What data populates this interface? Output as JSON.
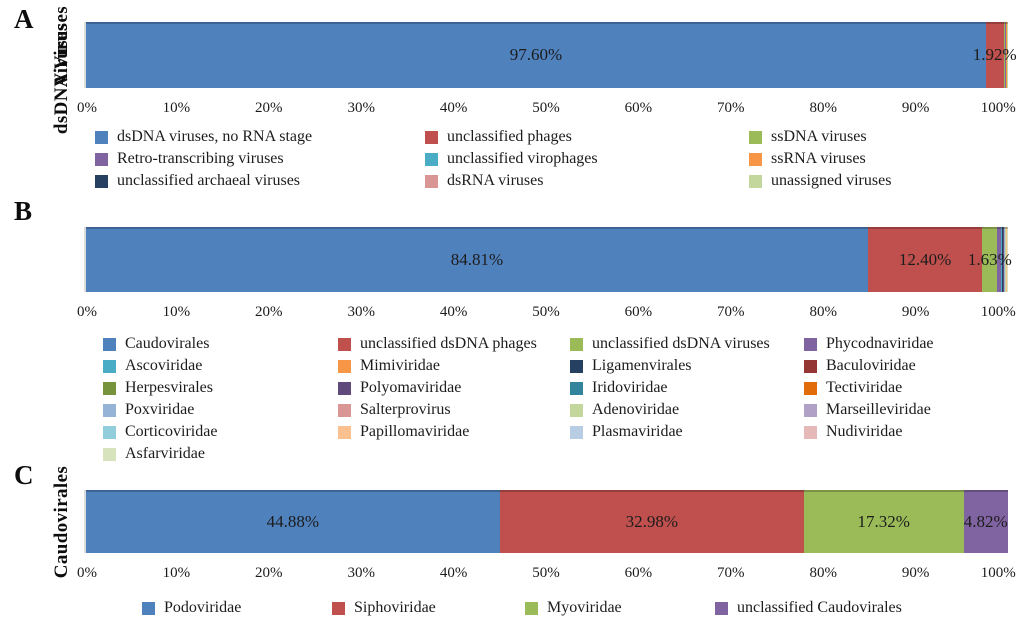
{
  "chart_data": [
    {
      "panel": "A",
      "type": "bar",
      "stacked": true,
      "orientation": "horizontal",
      "axis_label": "Viruses",
      "xlim": [
        0,
        100
      ],
      "x_tick_labels": [
        "0%",
        "10%",
        "20%",
        "30%",
        "40%",
        "50%",
        "60%",
        "70%",
        "80%",
        "90%",
        "100%"
      ],
      "grid": false,
      "legend_position": "bottom",
      "legend_columns": 3,
      "segments": [
        {
          "label": "dsDNA viruses, no RNA stage",
          "color": "#4F81BD",
          "value": 97.6,
          "value_label": "97.60%"
        },
        {
          "label": "unclassified phages",
          "color": "#C0504D",
          "value": 1.92,
          "value_label": "1.92%"
        },
        {
          "label": "ssDNA viruses",
          "color": "#9BBB59",
          "value": 0.18,
          "estimated": true
        },
        {
          "label": "Retro-transcribing viruses",
          "color": "#8064A2",
          "value": 0.06,
          "estimated": true
        },
        {
          "label": "unclassified virophages",
          "color": "#4BACC6",
          "value": 0.05,
          "estimated": true
        },
        {
          "label": "ssRNA viruses",
          "color": "#F79646",
          "value": 0.05,
          "estimated": true
        },
        {
          "label": "unclassified archaeal viruses",
          "color": "#254061",
          "value": 0.04,
          "estimated": true
        },
        {
          "label": "dsRNA viruses",
          "color": "#D99694",
          "value": 0.05,
          "estimated": true
        },
        {
          "label": "unassigned viruses",
          "color": "#C3D69B",
          "value": 0.05,
          "estimated": true
        }
      ]
    },
    {
      "panel": "B",
      "type": "bar",
      "stacked": true,
      "orientation": "horizontal",
      "axis_label": "dsDNA Viruses",
      "xlim": [
        0,
        100
      ],
      "x_tick_labels": [
        "0%",
        "10%",
        "20%",
        "30%",
        "40%",
        "50%",
        "60%",
        "70%",
        "80%",
        "90%",
        "100%"
      ],
      "grid": false,
      "legend_position": "bottom",
      "legend_columns": 4,
      "segments": [
        {
          "label": "Caudovirales",
          "color": "#4F81BD",
          "value": 84.81,
          "value_label": "84.81%"
        },
        {
          "label": "unclassified dsDNA phages",
          "color": "#C0504D",
          "value": 12.4,
          "value_label": "12.40%"
        },
        {
          "label": "unclassified dsDNA viruses",
          "color": "#9BBB59",
          "value": 1.63,
          "value_label": "1.63%"
        },
        {
          "label": "Phycodnaviridae",
          "color": "#8064A2",
          "value": 0.45,
          "estimated": true
        },
        {
          "label": "Ascoviridae",
          "color": "#4BACC6",
          "value": 0.05,
          "estimated": true
        },
        {
          "label": "Mimiviridae",
          "color": "#F79646",
          "value": 0.05,
          "estimated": true
        },
        {
          "label": "Ligamenvirales",
          "color": "#254061",
          "value": 0.04,
          "estimated": true
        },
        {
          "label": "Baculoviridae",
          "color": "#943634",
          "value": 0.04,
          "estimated": true
        },
        {
          "label": "Herpesvirales",
          "color": "#77933C",
          "value": 0.04,
          "estimated": true
        },
        {
          "label": "Polyomaviridae",
          "color": "#604A7B",
          "value": 0.04,
          "estimated": true
        },
        {
          "label": "Iridoviridae",
          "color": "#31849B",
          "value": 0.04,
          "estimated": true
        },
        {
          "label": "Tectiviridae",
          "color": "#E36C0A",
          "value": 0.04,
          "estimated": true
        },
        {
          "label": "Poxviridae",
          "color": "#95B3D7",
          "value": 0.04,
          "estimated": true
        },
        {
          "label": "Salterprovirus",
          "color": "#D99694",
          "value": 0.04,
          "estimated": true
        },
        {
          "label": "Adenoviridae",
          "color": "#C3D69B",
          "value": 0.04,
          "estimated": true
        },
        {
          "label": "Marseilleviridae",
          "color": "#B2A1C7",
          "value": 0.04,
          "estimated": true
        },
        {
          "label": "Corticoviridae",
          "color": "#92CDDC",
          "value": 0.04,
          "estimated": true
        },
        {
          "label": "Papillomaviridae",
          "color": "#FAC08F",
          "value": 0.04,
          "estimated": true
        },
        {
          "label": "Plasmaviridae",
          "color": "#B8CCE4",
          "value": 0.04,
          "estimated": true
        },
        {
          "label": "Nudiviridae",
          "color": "#E5B9B7",
          "value": 0.04,
          "estimated": true
        },
        {
          "label": "Asfarviridae",
          "color": "#D6E3BC",
          "value": 0.05,
          "estimated": true
        }
      ]
    },
    {
      "panel": "C",
      "type": "bar",
      "stacked": true,
      "orientation": "horizontal",
      "axis_label": "Caudovirales",
      "xlim": [
        0,
        100
      ],
      "x_tick_labels": [
        "0%",
        "10%",
        "20%",
        "30%",
        "40%",
        "50%",
        "60%",
        "70%",
        "80%",
        "90%",
        "100%"
      ],
      "grid": false,
      "legend_position": "bottom",
      "legend_columns": 4,
      "segments": [
        {
          "label": "Podoviridae",
          "color": "#4F81BD",
          "value": 44.88,
          "value_label": "44.88%"
        },
        {
          "label": "Siphoviridae",
          "color": "#C0504D",
          "value": 32.98,
          "value_label": "32.98%"
        },
        {
          "label": "Myoviridae",
          "color": "#9BBB59",
          "value": 17.32,
          "value_label": "17.32%"
        },
        {
          "label": "unclassified Caudovirales",
          "color": "#8064A2",
          "value": 4.82,
          "value_label": "4.82%"
        }
      ]
    }
  ]
}
